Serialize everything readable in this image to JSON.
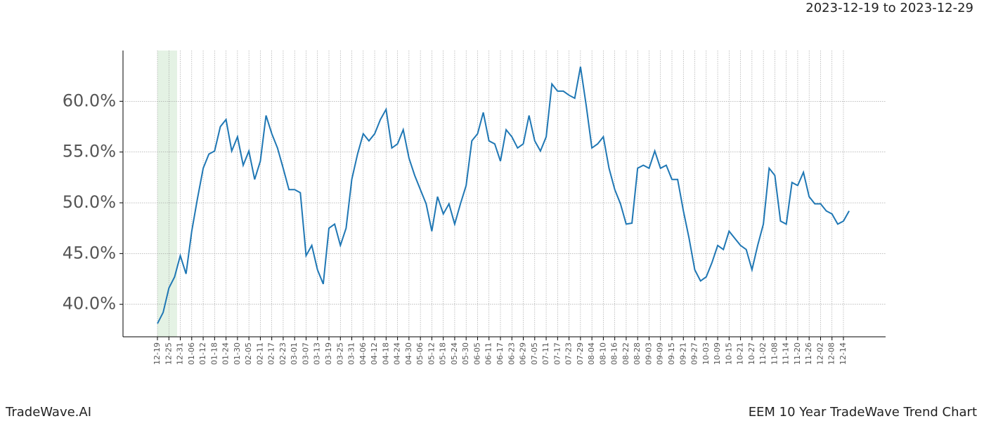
{
  "header": "2023-12-19 to 2023-12-29",
  "footer_left": "TradeWave.AI",
  "footer_right": "EEM 10 Year TradeWave Trend Chart",
  "chart_data": {
    "type": "line",
    "categories": [
      "12-19",
      null,
      "12-25",
      null,
      "12-31",
      null,
      "01-06",
      null,
      "01-12",
      null,
      "01-18",
      null,
      "01-24",
      null,
      "01-30",
      null,
      "02-05",
      null,
      "02-11",
      null,
      "02-17",
      null,
      "02-23",
      null,
      "03-01",
      null,
      "03-07",
      null,
      "03-13",
      null,
      "03-19",
      null,
      "03-25",
      null,
      "03-31",
      null,
      "04-06",
      null,
      "04-12",
      null,
      "04-18",
      null,
      "04-24",
      null,
      "04-30",
      null,
      "05-06",
      null,
      "05-12",
      null,
      "05-18",
      null,
      "05-24",
      null,
      "05-30",
      null,
      "06-05",
      null,
      "06-11",
      null,
      "06-17",
      null,
      "06-23",
      null,
      "06-29",
      null,
      "07-05",
      null,
      "07-11",
      null,
      "07-17",
      null,
      "07-23",
      null,
      "07-29",
      null,
      "08-04",
      null,
      "08-10",
      null,
      "08-16",
      null,
      "08-22",
      null,
      "08-28",
      null,
      "09-03",
      null,
      "09-09",
      null,
      "09-15",
      null,
      "09-21",
      null,
      "09-27",
      null,
      "10-03",
      null,
      "10-09",
      null,
      "10-15",
      null,
      "10-21",
      null,
      "10-27",
      null,
      "11-02",
      null,
      "11-08",
      null,
      "11-14",
      null,
      "11-20",
      null,
      "11-26",
      null,
      "12-02",
      null,
      "12-08",
      null,
      "12-14",
      null
    ],
    "series": [
      {
        "color": "#1f77b4",
        "values": [
          38.1,
          39.2,
          41.6,
          42.7,
          44.8,
          43.0,
          47.2,
          50.4,
          53.4,
          54.8,
          55.1,
          57.5,
          58.2,
          55.1,
          56.5,
          53.7,
          55.1,
          52.3,
          54.1,
          58.6,
          56.8,
          55.4,
          53.4,
          51.3,
          51.3,
          51.0,
          44.8,
          45.8,
          43.4,
          42.0,
          47.5,
          47.9,
          45.8,
          47.5,
          52.3,
          54.8,
          56.8,
          56.1,
          56.8,
          58.2,
          59.2,
          55.4,
          55.8,
          57.2,
          54.4,
          52.7,
          51.3,
          49.9,
          47.2,
          50.6,
          48.9,
          49.9,
          47.9,
          49.9,
          51.7,
          56.1,
          56.8,
          58.9,
          56.1,
          55.8,
          54.1,
          57.2,
          56.5,
          55.4,
          55.8,
          58.6,
          56.1,
          55.1,
          56.5,
          61.7,
          61.0,
          61.0,
          60.6,
          60.3,
          63.4,
          59.6,
          55.4,
          55.8,
          56.5,
          53.4,
          51.3,
          49.9,
          47.9,
          48.0,
          53.4,
          53.7,
          53.4,
          55.1,
          53.4,
          53.7,
          52.3,
          52.3,
          49.2,
          46.5,
          43.4,
          42.3,
          42.7,
          44.1,
          45.8,
          45.4,
          47.2,
          46.5,
          45.8,
          45.4,
          43.4,
          45.8,
          47.9,
          53.4,
          52.7,
          48.2,
          47.9,
          52.0,
          51.7,
          53.0,
          50.6,
          49.9,
          49.9,
          49.2,
          48.9,
          47.9,
          48.2,
          49.2
        ]
      }
    ],
    "ylim": [
      36.8,
      65
    ],
    "yticks": [
      {
        "value": 40,
        "label": "40.0%"
      },
      {
        "value": 45,
        "label": "45.0%"
      },
      {
        "value": 50,
        "label": "50.0%"
      },
      {
        "value": 55,
        "label": "55.0%"
      },
      {
        "value": 60,
        "label": "60.0%"
      }
    ],
    "grid": true
  }
}
